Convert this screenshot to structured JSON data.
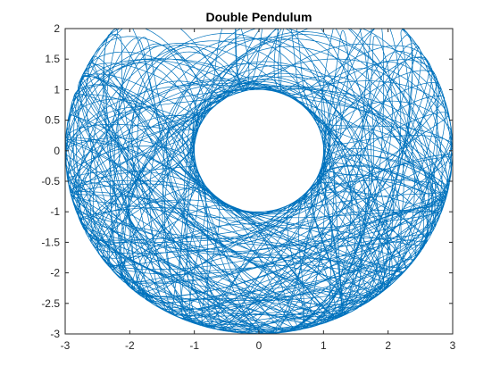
{
  "chart_data": {
    "type": "line",
    "title": "Double Pendulum",
    "xlabel": "",
    "ylabel": "",
    "xlim": [
      -3,
      3
    ],
    "ylim": [
      -3,
      2
    ],
    "xticks": [
      -3,
      -2,
      -1,
      0,
      1,
      2,
      3
    ],
    "yticks": [
      -3,
      -2.5,
      -2,
      -1.5,
      -1,
      -0.5,
      0,
      0.5,
      1,
      1.5,
      2
    ],
    "xtick_labels": [
      "-3",
      "-2",
      "-1",
      "0",
      "1",
      "2",
      "3"
    ],
    "ytick_labels": [
      "-3",
      "-2.5",
      "-2",
      "-1.5",
      "-1",
      "-0.5",
      "0",
      "0.5",
      "1",
      "1.5",
      "2"
    ],
    "grid": false,
    "box": true,
    "line_color": "#0072BD",
    "series": [
      {
        "inner_radius": 1,
        "outer_radius": 3,
        "x_range": [
          -3,
          3
        ],
        "y_range": [
          -3,
          1.9
        ]
      }
    ]
  }
}
